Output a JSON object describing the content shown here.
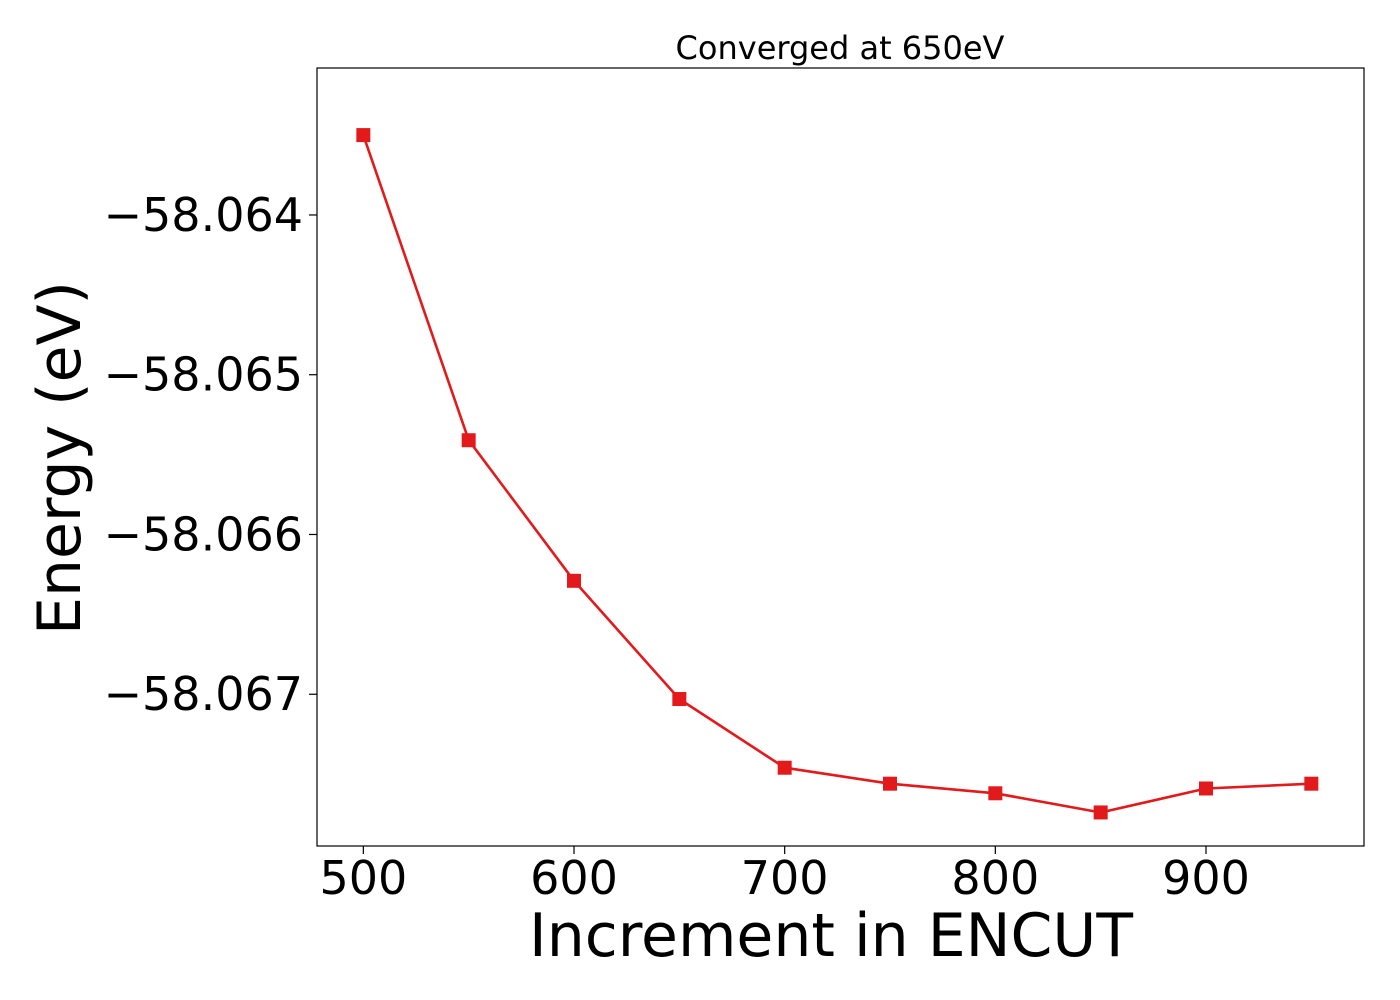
{
  "colors": {
    "series": "#e31a1c",
    "axis": "#000000",
    "background": "#ffffff"
  },
  "chart_data": {
    "type": "line",
    "title": "Converged at 650eV",
    "xlabel": "Increment in ENCUT",
    "ylabel": "Energy (eV)",
    "xlim": [
      478,
      975
    ],
    "ylim": [
      -58.06795,
      -58.06308
    ],
    "xticks": [
      500,
      600,
      700,
      800,
      900
    ],
    "xtick_labels": [
      "500",
      "600",
      "700",
      "800",
      "900"
    ],
    "yticks": [
      -58.064,
      -58.065,
      -58.066,
      -58.067
    ],
    "ytick_labels": [
      "−58.064",
      "−58.065",
      "−58.066",
      "−58.067"
    ],
    "grid": false,
    "marker": "square",
    "series": [
      {
        "x": [
          500,
          550,
          600,
          650,
          700,
          750,
          800,
          850,
          900,
          950
        ],
        "y": [
          -58.0635,
          -58.06541,
          -58.06629,
          -58.06703,
          -58.06746,
          -58.06756,
          -58.06762,
          -58.06774,
          -58.06759,
          -58.06756
        ]
      }
    ]
  }
}
